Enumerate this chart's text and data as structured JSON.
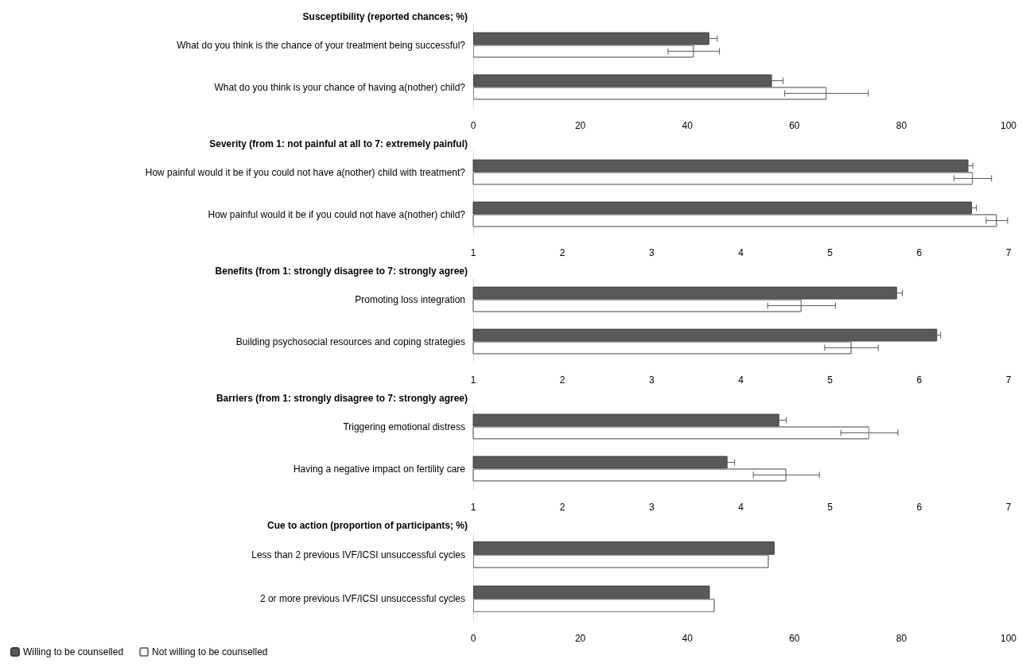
{
  "chart_data": [
    {
      "type": "bar",
      "orientation": "horizontal",
      "title": "Susceptibility (reported chances; %)",
      "categories": [
        "What do you think is the chance of your treatment being successful?",
        "What do you think is your chance of having a(nother) child?"
      ],
      "series": [
        {
          "color": "#595959",
          "values": [
            44.1,
            55.8
          ],
          "errors": [
            1.5,
            2.1
          ]
        },
        {
          "color": "#ffffff",
          "values": [
            41.2,
            66
          ],
          "errors": [
            4.8,
            7.8
          ]
        }
      ],
      "xlim": [
        0,
        100
      ],
      "xticks": [
        0,
        20,
        40,
        60,
        80,
        100
      ],
      "grid": false,
      "legend": false
    },
    {
      "type": "bar",
      "orientation": "horizontal",
      "title": "Severity (from 1: not painful at all to 7: extremely painful)",
      "categories": [
        "How painful would it be if you could not have a(nother) child with treatment?",
        "How painful would it be if you could not have a(nother) child?"
      ],
      "series": [
        {
          "color": "#595959",
          "values": [
            6.55,
            6.59
          ],
          "errors": [
            0.05,
            0.05
          ]
        },
        {
          "color": "#ffffff",
          "values": [
            6.6,
            6.87
          ],
          "errors": [
            0.21,
            0.12
          ]
        }
      ],
      "xlim": [
        1,
        7
      ],
      "xticks": [
        1,
        2,
        3,
        4,
        5,
        6,
        7
      ],
      "grid": false,
      "legend": false
    },
    {
      "type": "bar",
      "orientation": "horizontal",
      "title": "Benefits (from 1: strongly disagree to 7: strongly agree)",
      "categories": [
        "Promoting loss integration",
        "Building psychosocial resources and coping strategies"
      ],
      "series": [
        {
          "color": "#595959",
          "values": [
            5.75,
            6.2
          ],
          "errors": [
            0.06,
            0.04
          ]
        },
        {
          "color": "#ffffff",
          "values": [
            4.68,
            5.24
          ],
          "errors": [
            0.38,
            0.3
          ]
        }
      ],
      "xlim": [
        1,
        7
      ],
      "xticks": [
        1,
        2,
        3,
        4,
        5,
        6,
        7
      ],
      "grid": false,
      "legend": false
    },
    {
      "type": "bar",
      "orientation": "horizontal",
      "title": "Barriers (from 1: strongly disagree to 7: strongly agree)",
      "categories": [
        "Triggering emotional distress",
        "Having a negative impact on fertility care"
      ],
      "series": [
        {
          "color": "#595959",
          "values": [
            4.43,
            3.85
          ],
          "errors": [
            0.08,
            0.08
          ]
        },
        {
          "color": "#ffffff",
          "values": [
            5.44,
            4.51
          ],
          "errors": [
            0.32,
            0.37
          ]
        }
      ],
      "xlim": [
        1,
        7
      ],
      "xticks": [
        1,
        2,
        3,
        4,
        5,
        6,
        7
      ],
      "grid": false,
      "legend": false
    },
    {
      "type": "bar",
      "orientation": "horizontal",
      "title": "Cue to action (proportion of participants; %)",
      "categories": [
        "Less than 2 previous IVF/ICSI unsuccessful cycles",
        "2 or more previous IVF/ICSI unsuccessful cycles"
      ],
      "series": [
        {
          "name": "Willing to be counselled",
          "color": "#595959",
          "values": [
            56.3,
            44.2
          ]
        },
        {
          "name": "Not willing to be counselled",
          "color": "#ffffff",
          "values": [
            55.2,
            45.1
          ]
        }
      ],
      "xlim": [
        0,
        100
      ],
      "xticks": [
        0,
        20,
        40,
        60,
        80,
        100
      ],
      "grid": false,
      "legend": "bottom left"
    }
  ]
}
